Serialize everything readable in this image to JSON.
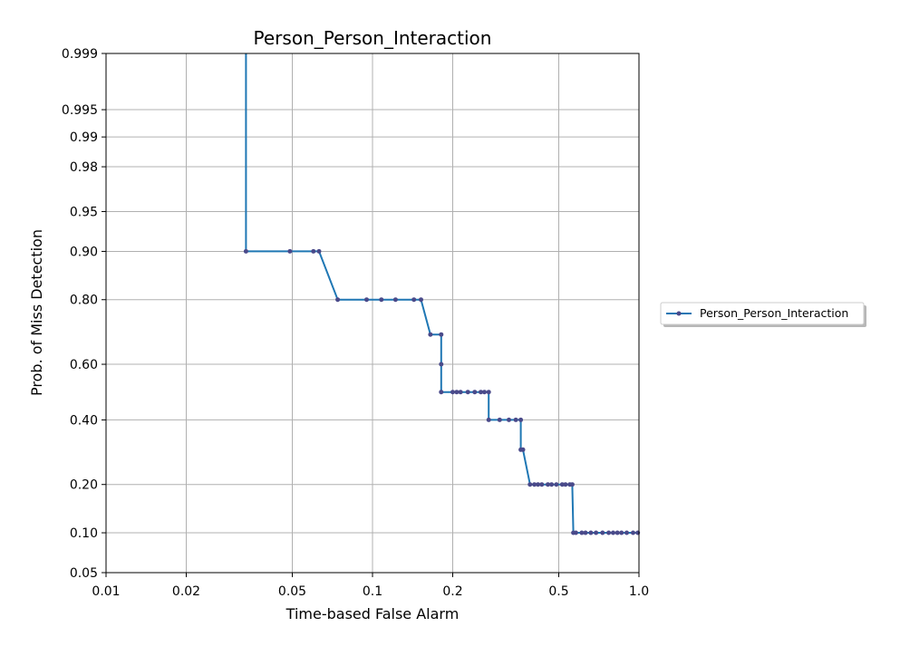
{
  "chart_data": {
    "type": "line",
    "title": "Person_Person_Interaction",
    "xlabel": "Time-based False Alarm",
    "ylabel": "Prob. of Miss Detection",
    "x_scale": "log",
    "y_scale": "normal-deviate",
    "xlim": [
      0.01,
      1.0
    ],
    "ylim": [
      0.05,
      0.999
    ],
    "x_ticks": [
      0.01,
      0.02,
      0.05,
      0.1,
      0.2,
      0.5,
      1.0
    ],
    "x_tick_labels": [
      "0.01",
      "0.02",
      "0.05",
      "0.1",
      "0.2",
      "0.5",
      "1.0"
    ],
    "y_ticks": [
      0.05,
      0.1,
      0.2,
      0.4,
      0.6,
      0.8,
      0.9,
      0.95,
      0.98,
      0.99,
      0.995,
      0.999
    ],
    "y_tick_labels": [
      "0.05",
      "0.10",
      "0.20",
      "0.40",
      "0.60",
      "0.80",
      "0.90",
      "0.95",
      "0.98",
      "0.99",
      "0.995",
      "0.999"
    ],
    "grid": true,
    "legend_position": "right",
    "series": [
      {
        "name": "Person_Person_Interaction",
        "color": "#1f77b4",
        "marker_color": "#4a4a8a",
        "line_points": [
          [
            0.0335,
            0.999
          ],
          [
            0.0335,
            0.9
          ],
          [
            0.049,
            0.9
          ],
          [
            0.06,
            0.9
          ],
          [
            0.063,
            0.9
          ],
          [
            0.074,
            0.8
          ],
          [
            0.095,
            0.8
          ],
          [
            0.108,
            0.8
          ],
          [
            0.122,
            0.8
          ],
          [
            0.143,
            0.8
          ],
          [
            0.152,
            0.8
          ],
          [
            0.165,
            0.7
          ],
          [
            0.181,
            0.7
          ],
          [
            0.181,
            0.6
          ],
          [
            0.181,
            0.5
          ],
          [
            0.2,
            0.5
          ],
          [
            0.207,
            0.5
          ],
          [
            0.214,
            0.5
          ],
          [
            0.228,
            0.5
          ],
          [
            0.242,
            0.5
          ],
          [
            0.255,
            0.5
          ],
          [
            0.263,
            0.5
          ],
          [
            0.273,
            0.5
          ],
          [
            0.273,
            0.4
          ],
          [
            0.285,
            0.4
          ],
          [
            0.3,
            0.4
          ],
          [
            0.325,
            0.4
          ],
          [
            0.345,
            0.4
          ],
          [
            0.36,
            0.4
          ],
          [
            0.36,
            0.3
          ],
          [
            0.367,
            0.3
          ],
          [
            0.39,
            0.2
          ],
          [
            0.405,
            0.2
          ],
          [
            0.418,
            0.2
          ],
          [
            0.432,
            0.2
          ],
          [
            0.455,
            0.2
          ],
          [
            0.47,
            0.2
          ],
          [
            0.49,
            0.2
          ],
          [
            0.515,
            0.2
          ],
          [
            0.53,
            0.2
          ],
          [
            0.55,
            0.2
          ],
          [
            0.562,
            0.2
          ],
          [
            0.567,
            0.1
          ],
          [
            0.58,
            0.1
          ],
          [
            0.61,
            0.1
          ],
          [
            0.63,
            0.1
          ],
          [
            0.66,
            0.1
          ],
          [
            0.69,
            0.1
          ],
          [
            0.73,
            0.1
          ],
          [
            0.77,
            0.1
          ],
          [
            0.8,
            0.1
          ],
          [
            0.83,
            0.1
          ],
          [
            0.86,
            0.1
          ],
          [
            0.9,
            0.1
          ],
          [
            0.95,
            0.1
          ],
          [
            0.99,
            0.1
          ],
          [
            1.0,
            0.1
          ]
        ],
        "markers": [
          [
            0.0335,
            0.9
          ],
          [
            0.049,
            0.9
          ],
          [
            0.06,
            0.9
          ],
          [
            0.063,
            0.9
          ],
          [
            0.074,
            0.8
          ],
          [
            0.095,
            0.8
          ],
          [
            0.108,
            0.8
          ],
          [
            0.122,
            0.8
          ],
          [
            0.143,
            0.8
          ],
          [
            0.152,
            0.8
          ],
          [
            0.165,
            0.7
          ],
          [
            0.181,
            0.7
          ],
          [
            0.181,
            0.6
          ],
          [
            0.181,
            0.5
          ],
          [
            0.2,
            0.5
          ],
          [
            0.207,
            0.5
          ],
          [
            0.214,
            0.5
          ],
          [
            0.228,
            0.5
          ],
          [
            0.242,
            0.5
          ],
          [
            0.255,
            0.5
          ],
          [
            0.263,
            0.5
          ],
          [
            0.273,
            0.5
          ],
          [
            0.273,
            0.4
          ],
          [
            0.3,
            0.4
          ],
          [
            0.325,
            0.4
          ],
          [
            0.345,
            0.4
          ],
          [
            0.36,
            0.4
          ],
          [
            0.36,
            0.3
          ],
          [
            0.367,
            0.3
          ],
          [
            0.39,
            0.2
          ],
          [
            0.405,
            0.2
          ],
          [
            0.418,
            0.2
          ],
          [
            0.432,
            0.2
          ],
          [
            0.455,
            0.2
          ],
          [
            0.47,
            0.2
          ],
          [
            0.49,
            0.2
          ],
          [
            0.515,
            0.2
          ],
          [
            0.53,
            0.2
          ],
          [
            0.55,
            0.2
          ],
          [
            0.562,
            0.2
          ],
          [
            0.567,
            0.1
          ],
          [
            0.58,
            0.1
          ],
          [
            0.61,
            0.1
          ],
          [
            0.63,
            0.1
          ],
          [
            0.66,
            0.1
          ],
          [
            0.69,
            0.1
          ],
          [
            0.73,
            0.1
          ],
          [
            0.77,
            0.1
          ],
          [
            0.8,
            0.1
          ],
          [
            0.83,
            0.1
          ],
          [
            0.86,
            0.1
          ],
          [
            0.9,
            0.1
          ],
          [
            0.95,
            0.1
          ],
          [
            0.99,
            0.1
          ]
        ]
      }
    ]
  }
}
